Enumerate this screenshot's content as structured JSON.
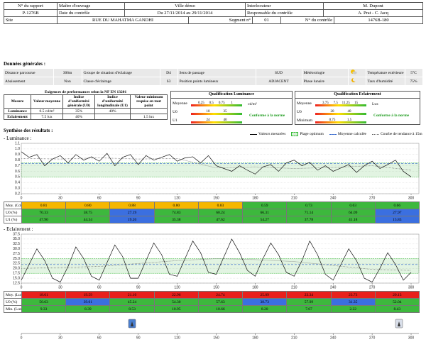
{
  "header": {
    "rows": [
      [
        "N° du rapport",
        "Maître d'ouvrage",
        "Ville démo",
        "Interlocuteur",
        "M. Dupont"
      ],
      [
        "P-1276B",
        "Date du contrôle",
        "Du 27/11/2014 au 29/11/2014",
        "Responsable du contrôle",
        "A. Prat - C. Jacq"
      ]
    ],
    "site_row": [
      "Site",
      "RUE DU MAHATMA GANDHI",
      "Segment n°",
      "01",
      "N° du contrôle",
      "1476B-180"
    ]
  },
  "general": {
    "title": "Données générales :",
    "rows": [
      [
        "Distance parcourue",
        "306m",
        "Groupe de situation d'éclairage",
        "D4",
        "Sens de passage",
        "SUD",
        "Météorologie",
        "Température extérieure",
        "5°C"
      ],
      [
        "Abaissement",
        "Non",
        "Classe d'éclairage",
        "S3",
        "Position points lumineux",
        "ADJACENT",
        "Phase lunaire",
        "Taux d'humidité",
        "75%"
      ]
    ]
  },
  "performance": {
    "title": "Exigences de performances selon la NF EN 13201",
    "headers": [
      "Mesure",
      "Valeur moyenne",
      "Indice d'uniformité générale (U0)",
      "Indice d'uniformité longitudinale (U1)",
      "Valeur minimum requise en tout point"
    ],
    "rows": [
      [
        "Luminance",
        "0.5 cd/m²",
        "35%",
        "40%",
        ""
      ],
      [
        "Eclairement",
        "7.5 lux",
        "40%",
        "",
        "1.5 lux"
      ]
    ]
  },
  "qualifications": [
    {
      "title": "Qualification Luminance",
      "rows": [
        {
          "label": "Moyenne",
          "ticks": [
            "0.25",
            "0.5",
            "0.75",
            "1"
          ],
          "unit": "cd/m²"
        },
        {
          "label": "U0",
          "ticks": [
            "10",
            "35"
          ]
        },
        {
          "label": "U1",
          "ticks": [
            "24",
            "40"
          ]
        }
      ],
      "verdict": "Conforme à la norme"
    },
    {
      "title": "Qualification Eclairement",
      "rows": [
        {
          "label": "Moyenne",
          "ticks": [
            "3.75",
            "7.5",
            "11.25",
            "15"
          ],
          "unit": "Lux"
        },
        {
          "label": "U0",
          "ticks": [
            "20",
            "40"
          ]
        },
        {
          "label": "Minimum",
          "ticks": [
            "0.75",
            "1.5"
          ]
        }
      ],
      "verdict": "Conforme à la norme"
    }
  ],
  "synthesis": {
    "title": "Synthèse des résultats :",
    "legend": [
      "Valeurs mesurées",
      "Plage optimum",
      "Moyenne calculée",
      "Courbe de tendance à 15m"
    ]
  },
  "luminance": {
    "title": "- Luminance :",
    "chart": {
      "type": "line",
      "x": [
        0,
        6,
        12,
        18,
        24,
        30,
        36,
        42,
        48,
        54,
        60,
        66,
        72,
        78,
        84,
        90,
        96,
        102,
        108,
        114,
        120,
        126,
        132,
        138,
        144,
        150,
        156,
        162,
        168,
        174,
        180,
        186,
        192,
        198,
        204,
        210,
        216,
        222,
        228,
        234,
        240,
        246,
        252,
        258,
        264,
        270,
        276,
        282,
        288,
        294,
        300
      ],
      "values": [
        0.95,
        0.85,
        0.9,
        0.7,
        0.82,
        0.88,
        0.75,
        0.9,
        0.8,
        0.86,
        0.78,
        0.92,
        0.7,
        0.85,
        0.9,
        0.72,
        0.88,
        0.8,
        0.85,
        0.9,
        0.78,
        0.84,
        0.86,
        0.75,
        0.88,
        0.7,
        0.65,
        0.6,
        0.7,
        0.62,
        0.55,
        0.68,
        0.72,
        0.6,
        0.75,
        0.8,
        0.7,
        0.76,
        0.62,
        0.7,
        0.6,
        0.66,
        0.72,
        0.58,
        0.7,
        0.78,
        0.65,
        0.72,
        0.8,
        0.6,
        0.5
      ],
      "trend_x": [
        0,
        30,
        60,
        90,
        120,
        150,
        180,
        210,
        240,
        270,
        300
      ],
      "trend": [
        0.83,
        0.82,
        0.84,
        0.82,
        0.83,
        0.66,
        0.68,
        0.65,
        0.67,
        0.7,
        0.62
      ],
      "optimum": [
        0.5,
        0.75
      ],
      "mean": 0.74,
      "xlim": [
        0,
        306
      ],
      "xticks": [
        0,
        30,
        60,
        90,
        120,
        150,
        180,
        210,
        240,
        270,
        300
      ],
      "ylim": [
        0.2,
        1.1
      ],
      "yticks": [
        0.2,
        0.3,
        0.4,
        0.5,
        0.6,
        0.7,
        0.8,
        0.9,
        {
          "value": 1,
          "label": "1.0"
        },
        1.1
      ]
    },
    "rows": [
      {
        "label": "Moy. (Cd/m²)",
        "values": [
          "0.81",
          "0.80",
          "0.88",
          "0.80",
          "0.83",
          "0.59",
          "0.73",
          "0.63",
          "0.66"
        ],
        "colors": [
          "#f5b700",
          "#f5b700",
          "#f5b700",
          "#f5b700",
          "#f5b700",
          "#3db83d",
          "#3db83d",
          "#3db83d",
          "#3db83d"
        ]
      },
      {
        "label": "U0 (%)",
        "values": [
          "70.33",
          "58.75",
          "27.19",
          "74.83",
          "60.24",
          "66.31",
          "71.14",
          "64.09",
          "27.97"
        ],
        "colors": [
          "#3db83d",
          "#3db83d",
          "#3b6fe0",
          "#3db83d",
          "#3db83d",
          "#3db83d",
          "#3db83d",
          "#3db83d",
          "#3b6fe0"
        ]
      },
      {
        "label": "U1 (%)",
        "values": [
          "47.90",
          "44.34",
          "19.20",
          "35.38",
          "47.62",
          "54.27",
          "37.78",
          "41.18",
          "15.83"
        ],
        "colors": [
          "#3db83d",
          "#3db83d",
          "#3b6fe0",
          "#3db83d",
          "#3db83d",
          "#3db83d",
          "#3db83d",
          "#3db83d",
          "#3b6fe0"
        ]
      }
    ]
  },
  "eclairement": {
    "title": "- Eclairement :",
    "chart": {
      "type": "line",
      "x": [
        0,
        6,
        12,
        18,
        24,
        30,
        36,
        42,
        48,
        54,
        60,
        66,
        72,
        78,
        84,
        90,
        96,
        102,
        108,
        114,
        120,
        126,
        132,
        138,
        144,
        150,
        156,
        162,
        168,
        174,
        180,
        186,
        192,
        198,
        204,
        210,
        216,
        222,
        228,
        234,
        240,
        246,
        252,
        258,
        264,
        270,
        276,
        282,
        288,
        294,
        300
      ],
      "values": [
        14,
        22,
        30,
        24,
        15,
        13,
        21,
        31,
        25,
        16,
        14,
        23,
        32,
        26,
        15,
        15,
        24,
        33,
        27,
        17,
        16,
        25,
        34,
        28,
        18,
        17,
        26,
        35,
        28,
        19,
        16,
        25,
        33,
        27,
        18,
        16,
        24,
        34,
        27,
        17,
        14,
        22,
        30,
        24,
        15,
        13,
        20,
        28,
        22,
        14,
        18
      ],
      "trend_x": [
        0,
        30,
        60,
        90,
        120,
        150,
        180,
        210,
        240,
        270,
        300
      ],
      "trend": [
        20,
        20.5,
        21,
        22.5,
        24,
        25,
        24.5,
        23.5,
        21.5,
        19.5,
        19
      ],
      "optimum": [
        17.5,
        25
      ],
      "mean": 22,
      "xlim": [
        0,
        306
      ],
      "xticks": [
        0,
        30,
        60,
        90,
        120,
        150,
        180,
        210,
        240,
        270,
        300
      ],
      "ylim": [
        12.5,
        37.5
      ],
      "yticks": [
        12.5,
        {
          "value": 15,
          "label": "15.0"
        },
        17.5,
        {
          "value": 20,
          "label": "20.0"
        },
        22.5,
        {
          "value": 25,
          "label": "25.0"
        },
        27.5,
        {
          "value": 30,
          "label": "30.0"
        },
        32.5,
        {
          "value": 35,
          "label": "35.0"
        },
        37.5
      ]
    },
    "rows": [
      {
        "label": "Moy. (Lux)",
        "values": [
          "18.61",
          "19.59",
          "21.10",
          "22.96",
          "24.74",
          "25.09",
          "23.34",
          "23.73",
          "20.13"
        ],
        "colors": [
          "#e8201c",
          "#e8201c",
          "#e8201c",
          "#e8201c",
          "#e8201c",
          "#e8201c",
          "#e8201c",
          "#e8201c",
          "#e8201c"
        ]
      },
      {
        "label": "U0 (%)",
        "values": [
          "50.63",
          "39.01",
          "45.24",
          "54.30",
          "57.63",
          "38.73",
          "57.99",
          "31.35",
          "52.04"
        ],
        "colors": [
          "#3db83d",
          "#3b6fe0",
          "#3db83d",
          "#3db83d",
          "#3db83d",
          "#3b6fe0",
          "#3db83d",
          "#3b6fe0",
          "#3db83d"
        ]
      },
      {
        "label": "Min. (Lux)",
        "values": [
          "9.33",
          "8.39",
          "8.53",
          "10.95",
          "10.66",
          "8.20",
          "7.67",
          "2.22",
          "8.43"
        ],
        "colors": [
          "#3db83d",
          "#3db83d",
          "#3db83d",
          "#3db83d",
          "#3db83d",
          "#3db83d",
          "#3db83d",
          "#3db83d",
          "#3db83d"
        ]
      }
    ]
  },
  "bottom_axis": {
    "xlim": [
      0,
      306
    ],
    "xticks": [
      0,
      30,
      60,
      90,
      120,
      150,
      180,
      210,
      240,
      270,
      300
    ]
  }
}
